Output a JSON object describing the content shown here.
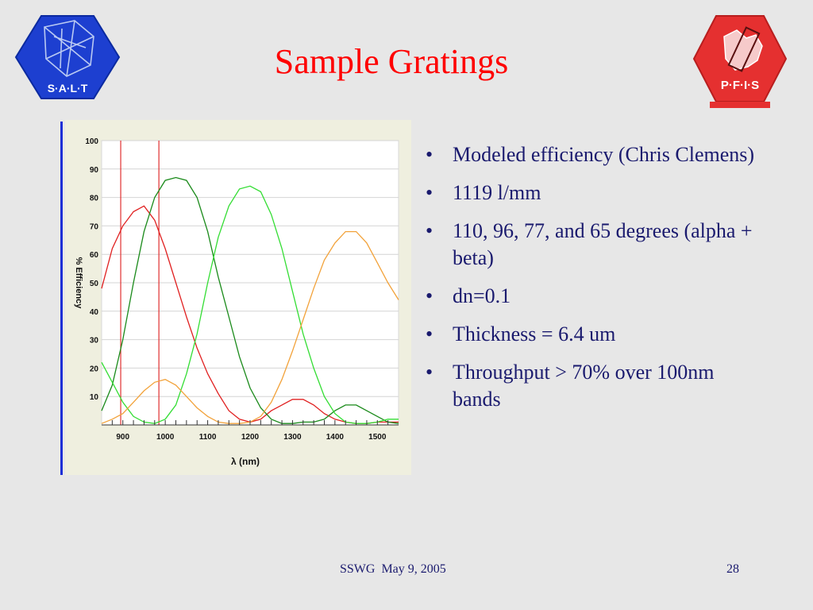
{
  "title": "Sample Gratings",
  "logos": {
    "salt": "S·A·L·T",
    "pfis": "P·F·I·S"
  },
  "bullets": [
    "Modeled efficiency (Chris Clemens)",
    "1119 l/mm",
    "110, 96, 77, and 65 degrees (alpha + beta)",
    "dn=0.1",
    "Thickness = 6.4 um",
    "Throughput > 70% over 100nm bands"
  ],
  "footer": {
    "text": "SSWG  May 9, 2005",
    "page": "28"
  },
  "chart_data": {
    "type": "line",
    "xlabel": "λ (nm)",
    "ylabel": "% Efficiency",
    "xlim": [
      850,
      1550
    ],
    "ylim": [
      0,
      100
    ],
    "x_ticks": [
      900,
      1000,
      1100,
      1200,
      1300,
      1400,
      1500
    ],
    "y_ticks": [
      10,
      20,
      30,
      40,
      50,
      60,
      70,
      80,
      90,
      100
    ],
    "grid": true,
    "vertical_markers": {
      "x": [
        895,
        985
      ],
      "color": "#e03030"
    },
    "series": [
      {
        "color": "#e02020",
        "x": [
          850,
          875,
          900,
          925,
          950,
          975,
          1000,
          1025,
          1050,
          1075,
          1100,
          1125,
          1150,
          1175,
          1200,
          1225,
          1250,
          1275,
          1300,
          1325,
          1350,
          1375,
          1400,
          1425,
          1450,
          1475,
          1500,
          1525,
          1550
        ],
        "y": [
          48,
          62,
          70,
          75,
          77,
          72,
          62,
          50,
          38,
          27,
          18,
          11,
          5,
          2,
          1,
          2,
          5,
          7,
          9,
          9,
          7,
          4,
          2,
          1,
          0.5,
          0.5,
          1,
          1,
          1
        ]
      },
      {
        "color": "#1a8a1a",
        "x": [
          850,
          875,
          900,
          925,
          950,
          975,
          1000,
          1025,
          1050,
          1075,
          1100,
          1125,
          1150,
          1175,
          1200,
          1225,
          1250,
          1275,
          1300,
          1325,
          1350,
          1375,
          1400,
          1425,
          1450,
          1475,
          1500,
          1525,
          1550
        ],
        "y": [
          5,
          14,
          30,
          50,
          68,
          80,
          86,
          87,
          86,
          80,
          68,
          52,
          38,
          24,
          13,
          6,
          2,
          0.5,
          0.5,
          1,
          1,
          2,
          5,
          7,
          7,
          5,
          3,
          1,
          0.5
        ]
      },
      {
        "color": "#33dd33",
        "x": [
          850,
          875,
          900,
          925,
          950,
          975,
          1000,
          1025,
          1050,
          1075,
          1100,
          1125,
          1150,
          1175,
          1200,
          1225,
          1250,
          1275,
          1300,
          1325,
          1350,
          1375,
          1400,
          1425,
          1450,
          1475,
          1500,
          1525,
          1550
        ],
        "y": [
          22,
          15,
          8,
          3,
          1,
          0.5,
          2,
          7,
          18,
          32,
          50,
          66,
          77,
          83,
          84,
          82,
          74,
          62,
          47,
          32,
          20,
          10,
          4,
          1,
          0.5,
          0.5,
          1,
          2,
          2
        ]
      },
      {
        "color": "#f2a23a",
        "x": [
          850,
          875,
          900,
          925,
          950,
          975,
          1000,
          1025,
          1050,
          1075,
          1100,
          1125,
          1150,
          1175,
          1200,
          1225,
          1250,
          1275,
          1300,
          1325,
          1350,
          1375,
          1400,
          1425,
          1450,
          1475,
          1500,
          1525,
          1550
        ],
        "y": [
          0.5,
          2,
          4,
          8,
          12,
          15,
          16,
          14,
          10,
          6,
          3,
          1,
          0.5,
          0.5,
          1,
          3,
          8,
          16,
          26,
          37,
          48,
          58,
          64,
          68,
          68,
          64,
          57,
          50,
          44
        ]
      }
    ]
  }
}
